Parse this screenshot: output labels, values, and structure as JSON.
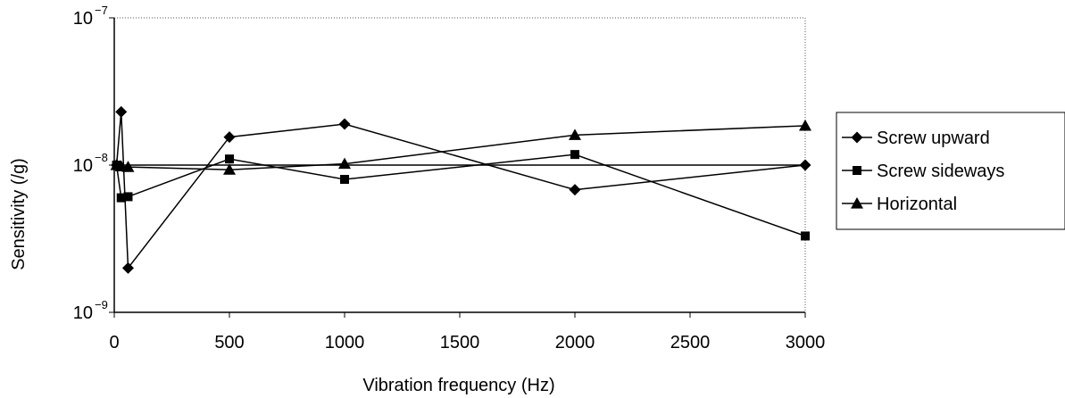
{
  "chart_data": {
    "type": "line",
    "title": "",
    "xlabel": "Vibration frequency (Hz)",
    "ylabel": "Sensitivity (/g)",
    "xlim": [
      0,
      3000
    ],
    "ylim": [
      1e-09,
      1e-07
    ],
    "yscale": "log",
    "grid": false,
    "legend_position": "right",
    "x_ticks": [
      "0",
      "500",
      "1000",
      "1500",
      "2000",
      "2500",
      "3000"
    ],
    "y_ticks": [
      {
        "value": 1e-09,
        "base": "10",
        "exp": "−9"
      },
      {
        "value": 1e-08,
        "base": "10",
        "exp": "−8"
      },
      {
        "value": 1e-07,
        "base": "10",
        "exp": "−7"
      }
    ],
    "reference_line": {
      "y": 1e-08
    },
    "series": [
      {
        "name": "Screw upward",
        "marker": "diamond",
        "x": [
          10,
          30,
          60,
          500,
          1000,
          2000,
          3000
        ],
        "y": [
          1e-08,
          2.3e-08,
          2e-09,
          1.55e-08,
          1.9e-08,
          6.8e-09,
          1e-08
        ]
      },
      {
        "name": "Screw sideways",
        "marker": "square",
        "x": [
          10,
          30,
          60,
          500,
          1000,
          2000,
          3000
        ],
        "y": [
          1e-08,
          6e-09,
          6.1e-09,
          1.1e-08,
          8e-09,
          1.18e-08,
          3.3e-09
        ]
      },
      {
        "name": "Horizontal",
        "marker": "triangle",
        "x": [
          10,
          30,
          60,
          500,
          1000,
          2000,
          3000
        ],
        "y": [
          1e-08,
          9.8e-09,
          9.7e-09,
          9.3e-09,
          1.02e-08,
          1.6e-08,
          1.85e-08
        ]
      }
    ]
  }
}
